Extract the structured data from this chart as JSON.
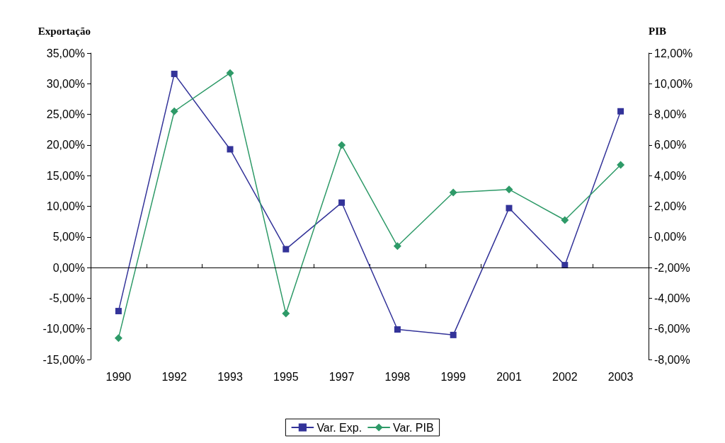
{
  "chart_data": {
    "type": "line",
    "ylabel": "Exportação",
    "y2label": "PIB",
    "categories": [
      "1990",
      "1992",
      "1993",
      "1995",
      "1997",
      "1998",
      "1999",
      "2001",
      "2002",
      "2003"
    ],
    "series": [
      {
        "name": "Var. Exp.",
        "color": "#333399",
        "marker": "square",
        "values": [
          -7.1,
          31.6,
          19.3,
          3.0,
          10.6,
          -10.1,
          -11.0,
          9.7,
          0.4,
          25.5
        ]
      },
      {
        "name": "Var. PIB",
        "color": "#2e9a68",
        "marker": "diamond",
        "axis": "y2",
        "values": [
          -6.6,
          8.2,
          10.7,
          -5.0,
          6.0,
          -0.6,
          2.9,
          3.1,
          1.1,
          4.7
        ]
      }
    ],
    "ylim": [
      -15,
      35
    ],
    "yticks": [
      {
        "value": -15,
        "label": "-15,00%"
      },
      {
        "value": -10,
        "label": "-10,00%"
      },
      {
        "value": -5,
        "label": "-5,00%"
      },
      {
        "value": 0,
        "label": "0,00%"
      },
      {
        "value": 5,
        "label": "5,00%"
      },
      {
        "value": 10,
        "label": "10,00%"
      },
      {
        "value": 15,
        "label": "15,00%"
      },
      {
        "value": 20,
        "label": "20,00%"
      },
      {
        "value": 25,
        "label": "25,00%"
      },
      {
        "value": 30,
        "label": "30,00%"
      },
      {
        "value": 35,
        "label": "35,00%"
      }
    ],
    "y2lim": [
      -8,
      12
    ],
    "y2ticks": [
      {
        "value": -8,
        "label": "-8,00%"
      },
      {
        "value": -6,
        "label": "-6,00%"
      },
      {
        "value": -4,
        "label": "-4,00%"
      },
      {
        "value": -2,
        "label": "-2,00%"
      },
      {
        "value": 0,
        "label": "0,00%"
      },
      {
        "value": 2,
        "label": "2,00%"
      },
      {
        "value": 4,
        "label": "4,00%"
      },
      {
        "value": 6,
        "label": "6,00%"
      },
      {
        "value": 8,
        "label": "8,00%"
      },
      {
        "value": 10,
        "label": "10,00%"
      },
      {
        "value": 12,
        "label": "12,00%"
      }
    ],
    "ref_lines": [
      {
        "axis": "y",
        "value": 0,
        "color": "#000000",
        "line_style": "solid"
      }
    ],
    "grid": false,
    "legend": "bottom",
    "line_style": "solid"
  }
}
